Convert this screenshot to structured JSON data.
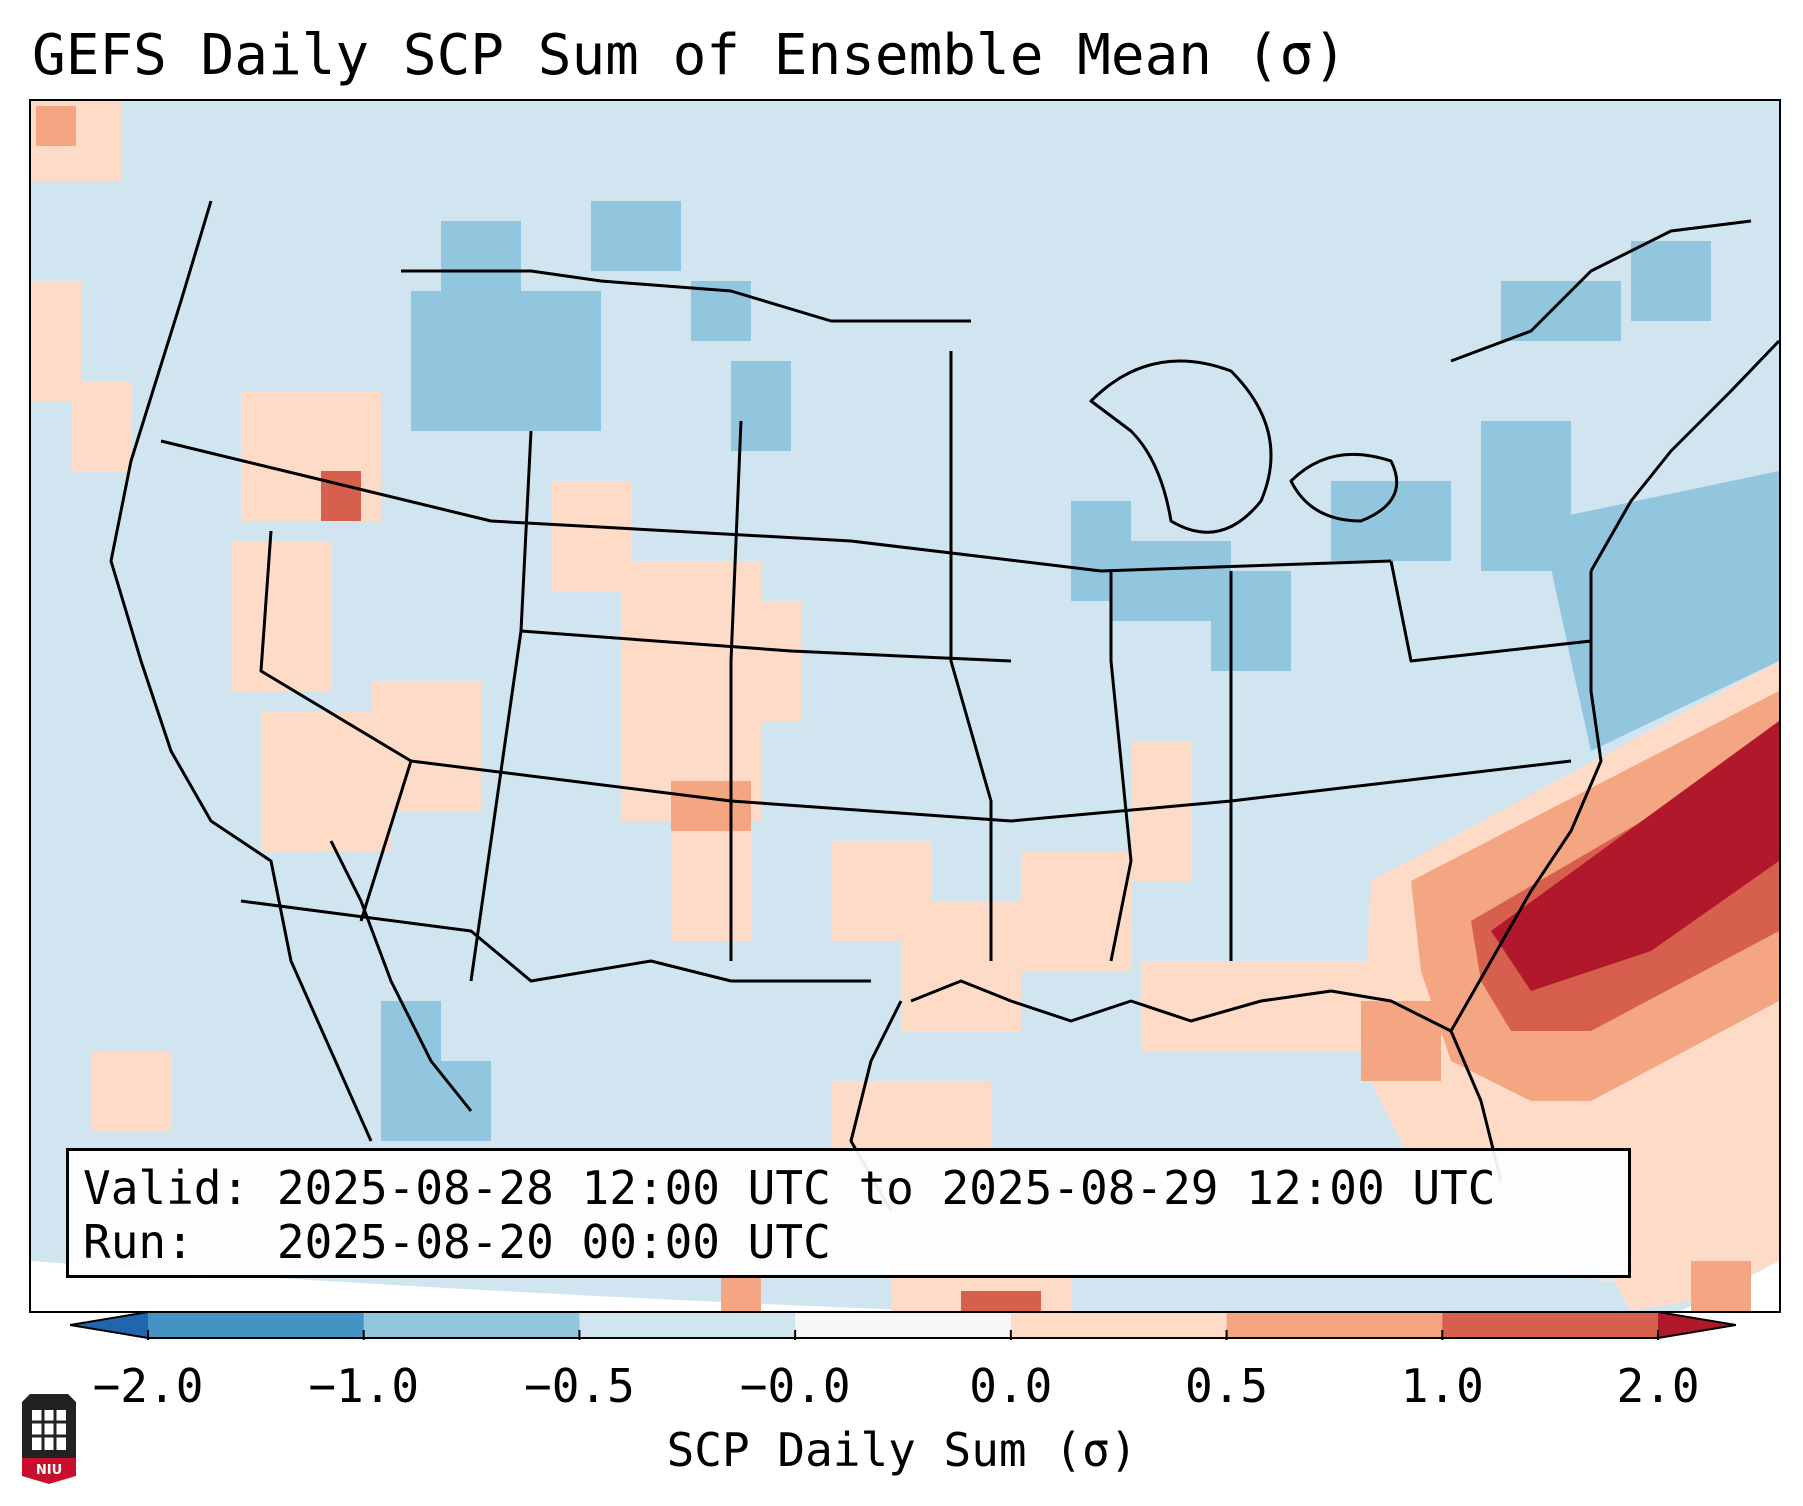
{
  "title": "GEFS Daily SCP Sum of Ensemble Mean (σ)",
  "info": {
    "valid_prefix": "Valid:",
    "valid_value": "2025-08-28 12:00 UTC to 2025-08-29 12:00 UTC",
    "run_prefix": "Run:",
    "run_value": "2025-08-20 00:00 UTC"
  },
  "colorbar": {
    "label": "SCP Daily Sum (σ)",
    "ticks": [
      "−2.0",
      "−1.0",
      "−0.5",
      "−0.0",
      "0.0",
      "0.5",
      "1.0",
      "2.0"
    ],
    "colors": [
      "#4393c3",
      "#92c5de",
      "#d1e5f0",
      "#f7f7f7",
      "#fddbc7",
      "#f4a582",
      "#d6604d"
    ],
    "extend_low_color": "#2166ac",
    "extend_high_color": "#b2182b"
  },
  "map_colors": {
    "background": "#d1e5f0",
    "moderate_negative": "#92c5de",
    "light_positive": "#fddbc7",
    "moderate_positive": "#f4a582",
    "high_positive": "#d6604d",
    "very_high_positive": "#b2182b"
  },
  "logo": {
    "text": "NIU",
    "icon": "niu-logo-icon"
  }
}
